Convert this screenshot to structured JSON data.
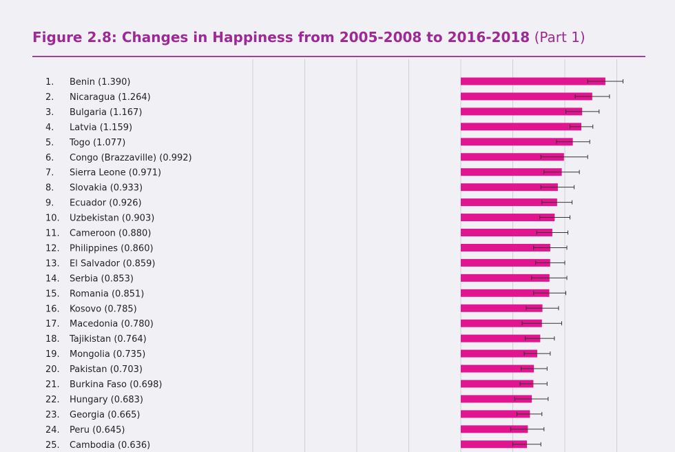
{
  "title": {
    "main": "Figure 2.8: Changes in Happiness from 2005-2008 to 2016-2018",
    "part": "(Part 1)"
  },
  "colors": {
    "title": "#9c2a94",
    "bar": "#e0158f",
    "errorbar": "#333333",
    "grid": "#cfcfd6",
    "background": "#f1f0f5"
  },
  "chart_data": {
    "type": "bar",
    "orientation": "horizontal",
    "title": "Figure 2.8: Changes in Happiness from 2005-2008 to 2016-2018 (Part 1)",
    "xlabel": "",
    "ylabel": "",
    "xlim": [
      -2.0,
      1.5
    ],
    "grid": true,
    "categories": [
      "1. Benin (1.390)",
      "2. Nicaragua (1.264)",
      "3. Bulgaria (1.167)",
      "4. Latvia (1.159)",
      "5. Togo (1.077)",
      "6. Congo (Brazzaville) (0.992)",
      "7. Sierra Leone (0.971)",
      "8. Slovakia (0.933)",
      "9. Ecuador (0.926)",
      "10. Uzbekistan (0.903)",
      "11. Cameroon (0.880)",
      "12. Philippines (0.860)",
      "13. El Salvador (0.859)",
      "14. Serbia (0.853)",
      "15. Romania (0.851)",
      "16. Kosovo (0.785)",
      "17. Macedonia (0.780)",
      "18. Tajikistan (0.764)",
      "19. Mongolia (0.735)",
      "20. Pakistan (0.703)",
      "21. Burkina Faso (0.698)",
      "22. Hungary (0.683)",
      "23. Georgia (0.665)",
      "24. Peru (0.645)",
      "25. Cambodia (0.636)"
    ],
    "rows": [
      {
        "rank": "1.",
        "label": "Benin (1.390)",
        "value": 1.39,
        "ci": [
          1.22,
          1.56
        ]
      },
      {
        "rank": "2.",
        "label": "Nicaragua (1.264)",
        "value": 1.264,
        "ci": [
          1.1,
          1.43
        ]
      },
      {
        "rank": "3.",
        "label": "Bulgaria (1.167)",
        "value": 1.167,
        "ci": [
          1.01,
          1.33
        ]
      },
      {
        "rank": "4.",
        "label": "Latvia (1.159)",
        "value": 1.159,
        "ci": [
          1.05,
          1.27
        ]
      },
      {
        "rank": "5.",
        "label": "Togo (1.077)",
        "value": 1.077,
        "ci": [
          0.92,
          1.24
        ]
      },
      {
        "rank": "6.",
        "label": "Congo (Brazzaville) (0.992)",
        "value": 0.992,
        "ci": [
          0.77,
          1.22
        ]
      },
      {
        "rank": "7.",
        "label": "Sierra Leone (0.971)",
        "value": 0.971,
        "ci": [
          0.8,
          1.14
        ]
      },
      {
        "rank": "8.",
        "label": "Slovakia (0.933)",
        "value": 0.933,
        "ci": [
          0.77,
          1.09
        ]
      },
      {
        "rank": "9.",
        "label": "Ecuador (0.926)",
        "value": 0.926,
        "ci": [
          0.78,
          1.07
        ]
      },
      {
        "rank": "10.",
        "label": "Uzbekistan (0.903)",
        "value": 0.903,
        "ci": [
          0.76,
          1.05
        ]
      },
      {
        "rank": "11.",
        "label": "Cameroon (0.880)",
        "value": 0.88,
        "ci": [
          0.73,
          1.03
        ]
      },
      {
        "rank": "12.",
        "label": "Philippines (0.860)",
        "value": 0.86,
        "ci": [
          0.7,
          1.02
        ]
      },
      {
        "rank": "13.",
        "label": "El Salvador (0.859)",
        "value": 0.859,
        "ci": [
          0.72,
          1.0
        ]
      },
      {
        "rank": "14.",
        "label": "Serbia (0.853)",
        "value": 0.853,
        "ci": [
          0.68,
          1.02
        ]
      },
      {
        "rank": "15.",
        "label": "Romania (0.851)",
        "value": 0.851,
        "ci": [
          0.7,
          1.01
        ]
      },
      {
        "rank": "16.",
        "label": "Kosovo (0.785)",
        "value": 0.785,
        "ci": [
          0.63,
          0.94
        ]
      },
      {
        "rank": "17.",
        "label": "Macedonia (0.780)",
        "value": 0.78,
        "ci": [
          0.59,
          0.97
        ]
      },
      {
        "rank": "18.",
        "label": "Tajikistan (0.764)",
        "value": 0.764,
        "ci": [
          0.62,
          0.9
        ]
      },
      {
        "rank": "19.",
        "label": "Mongolia (0.735)",
        "value": 0.735,
        "ci": [
          0.61,
          0.86
        ]
      },
      {
        "rank": "20.",
        "label": "Pakistan (0.703)",
        "value": 0.703,
        "ci": [
          0.58,
          0.83
        ]
      },
      {
        "rank": "21.",
        "label": "Burkina Faso (0.698)",
        "value": 0.698,
        "ci": [
          0.57,
          0.83
        ]
      },
      {
        "rank": "22.",
        "label": "Hungary (0.683)",
        "value": 0.683,
        "ci": [
          0.52,
          0.84
        ]
      },
      {
        "rank": "23.",
        "label": "Georgia (0.665)",
        "value": 0.665,
        "ci": [
          0.54,
          0.78
        ]
      },
      {
        "rank": "24.",
        "label": "Peru (0.645)",
        "value": 0.645,
        "ci": [
          0.48,
          0.8
        ]
      },
      {
        "rank": "25.",
        "label": "Cambodia (0.636)",
        "value": 0.636,
        "ci": [
          0.5,
          0.77
        ]
      }
    ]
  }
}
